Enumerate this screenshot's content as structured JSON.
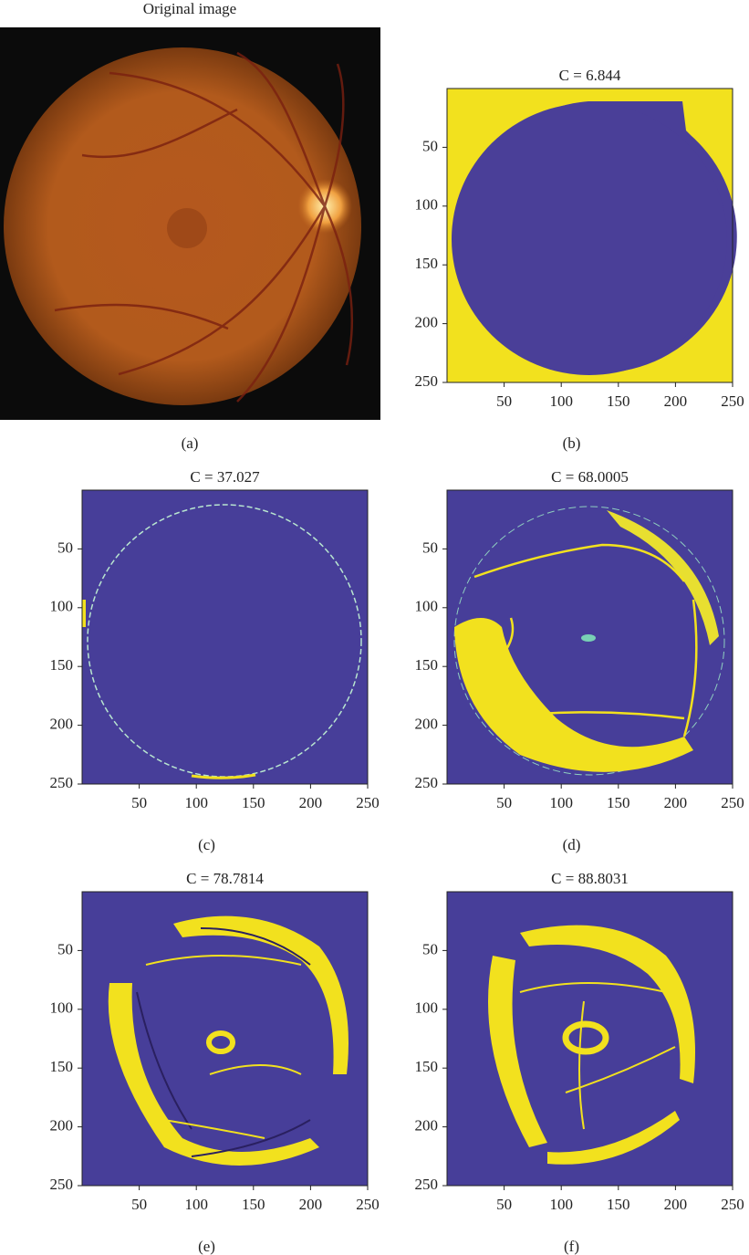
{
  "panels": [
    {
      "title": "Original image",
      "caption": "(a)"
    },
    {
      "title": "C = 6.844",
      "caption": "(b)",
      "xlim": [
        0,
        250
      ],
      "ylim": [
        0,
        250
      ],
      "xticks": [
        50,
        100,
        150,
        200,
        250
      ],
      "yticks": [
        50,
        100,
        150,
        200,
        250
      ]
    },
    {
      "title": "C = 37.027",
      "caption": "(c)",
      "xlim": [
        0,
        250
      ],
      "ylim": [
        0,
        250
      ],
      "xticks": [
        50,
        100,
        150,
        200,
        250
      ],
      "yticks": [
        50,
        100,
        150,
        200,
        250
      ]
    },
    {
      "title": "C = 68.0005",
      "caption": "(d)",
      "xlim": [
        0,
        250
      ],
      "ylim": [
        0,
        250
      ],
      "xticks": [
        50,
        100,
        150,
        200,
        250
      ],
      "yticks": [
        50,
        100,
        150,
        200,
        250
      ]
    },
    {
      "title": "C = 78.7814",
      "caption": "(e)",
      "xlim": [
        0,
        250
      ],
      "ylim": [
        0,
        250
      ],
      "xticks": [
        50,
        100,
        150,
        200,
        250
      ],
      "yticks": [
        50,
        100,
        150,
        200,
        250
      ]
    },
    {
      "title": "C = 88.8031",
      "caption": "(f)",
      "xlim": [
        0,
        250
      ],
      "ylim": [
        0,
        250
      ],
      "xticks": [
        50,
        100,
        150,
        200,
        250
      ],
      "yticks": [
        50,
        100,
        150,
        200,
        250
      ]
    }
  ]
}
